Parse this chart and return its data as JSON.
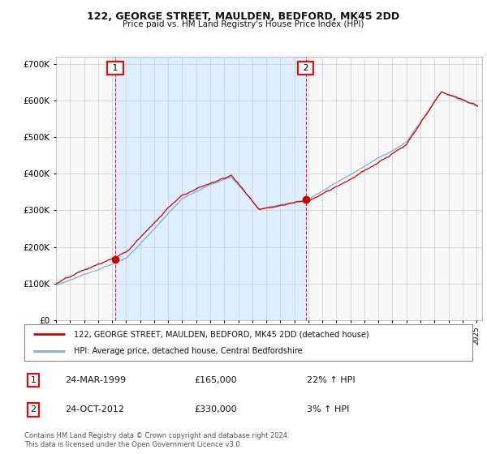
{
  "title": "122, GEORGE STREET, MAULDEN, BEDFORD, MK45 2DD",
  "subtitle": "Price paid vs. HM Land Registry's House Price Index (HPI)",
  "ylim": [
    0,
    720000
  ],
  "xlim_start": 1995.0,
  "xlim_end": 2025.4,
  "hpi_color": "#7bafd4",
  "hpi_fill_color": "#ddeeff",
  "price_color": "#cc0000",
  "background_color": "#ffffff",
  "plot_bg_color": "#f5f5f5",
  "grid_color": "#cccccc",
  "legend_label_red": "122, GEORGE STREET, MAULDEN, BEDFORD, MK45 2DD (detached house)",
  "legend_label_blue": "HPI: Average price, detached house, Central Bedfordshire",
  "sale1_x": 1999.23,
  "sale1_y": 165000,
  "sale2_x": 2012.81,
  "sale2_y": 330000,
  "annotation1_date": "24-MAR-1999",
  "annotation1_price": "£165,000",
  "annotation1_hpi": "22% ↑ HPI",
  "annotation2_date": "24-OCT-2012",
  "annotation2_price": "£330,000",
  "annotation2_hpi": "3% ↑ HPI",
  "footnote": "Contains HM Land Registry data © Crown copyright and database right 2024.\nThis data is licensed under the Open Government Licence v3.0."
}
